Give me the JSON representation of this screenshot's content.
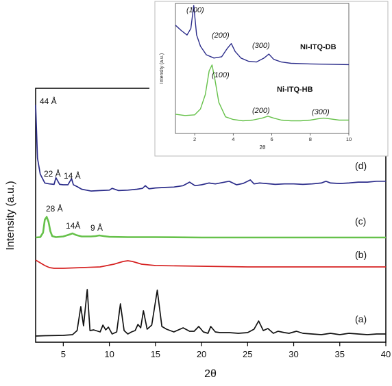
{
  "chart_data": [
    {
      "type": "line",
      "title": "",
      "xlabel": "2θ",
      "ylabel": "Intensity (a.u.)",
      "xlim": [
        2,
        40
      ],
      "x_ticks": [
        5,
        10,
        15,
        20,
        25,
        30,
        35,
        40
      ],
      "y_ticks_shown": false,
      "series": [
        {
          "name": "(d)",
          "color": "#2b2c8a",
          "x": [
            2.0,
            2.2,
            2.5,
            3.0,
            3.5,
            4.0,
            4.2,
            4.6,
            5.0,
            5.5,
            5.9,
            6.1,
            6.5,
            7.0,
            8.0,
            9.0,
            10.0,
            10.3,
            11.0,
            12.0,
            13.0,
            13.6,
            13.9,
            14.3,
            15.0,
            16.0,
            17.0,
            18.0,
            18.7,
            19.3,
            20.0,
            20.8,
            21.5,
            22.0,
            23.0,
            23.8,
            24.5,
            25.3,
            25.7,
            26.3,
            27.0,
            28.0,
            29.0,
            30.0,
            31.0,
            32.0,
            33.0,
            33.5,
            34.0,
            35.0,
            36.0,
            37.0,
            38.0,
            39.0,
            40.0
          ],
          "y": [
            100,
            40,
            22,
            12,
            11,
            10.5,
            18,
            10.5,
            10,
            10,
            17,
            10,
            8,
            5,
            3,
            3.5,
            4,
            6,
            3.5,
            4,
            5,
            6,
            9,
            5.5,
            6.5,
            7,
            7.5,
            9,
            13,
            9,
            10,
            12,
            11,
            12,
            14,
            10,
            11.5,
            15.5,
            11,
            12,
            11.5,
            10.5,
            11,
            11,
            10.5,
            11,
            12,
            14,
            12,
            11.5,
            12,
            13,
            13,
            14,
            14
          ]
        },
        {
          "name": "(c)",
          "color": "#66c14a",
          "x": [
            2.0,
            2.5,
            2.8,
            3.0,
            3.2,
            3.4,
            3.6,
            3.8,
            4.2,
            5.0,
            5.6,
            6.0,
            6.4,
            7.0,
            8.0,
            8.5,
            8.9,
            9.4,
            10.0,
            12.0,
            15.0,
            20.0,
            25.0,
            30.0,
            35.0,
            40.0
          ],
          "y": [
            1,
            1.5,
            8,
            27,
            31,
            24,
            10,
            3,
            1.5,
            2.5,
            5,
            7,
            4.5,
            2.5,
            2.5,
            3,
            4,
            3,
            2,
            1.5,
            1.5,
            1,
            1,
            1,
            1,
            1
          ]
        },
        {
          "name": "(b)",
          "color": "#d62222",
          "x": [
            2.0,
            2.5,
            3.0,
            3.5,
            4.0,
            5.0,
            7.0,
            9.0,
            10.5,
            11.5,
            12.0,
            12.5,
            13.5,
            15.0,
            20.0,
            25.0,
            30.0,
            35.0,
            40.0
          ],
          "y": [
            6,
            4,
            2,
            0.5,
            0,
            0,
            0.5,
            1,
            3,
            5,
            5.5,
            5,
            3,
            2,
            1.5,
            1,
            1,
            1,
            1
          ]
        },
        {
          "name": "(a)",
          "color": "#111111",
          "x": [
            2.0,
            3.0,
            5.0,
            6.0,
            6.5,
            6.9,
            7.2,
            7.6,
            7.9,
            8.3,
            9.0,
            9.3,
            9.6,
            9.9,
            10.3,
            10.8,
            11.2,
            11.6,
            12.0,
            12.4,
            12.8,
            13.1,
            13.4,
            13.7,
            14.1,
            14.6,
            15.2,
            15.7,
            16.2,
            17.0,
            18.0,
            18.7,
            19.2,
            19.7,
            20.2,
            20.7,
            21.0,
            21.5,
            22.0,
            23.0,
            24.0,
            25.0,
            25.7,
            26.2,
            26.7,
            27.2,
            27.8,
            28.3,
            29.0,
            29.5,
            30.3,
            31.0,
            32.0,
            33.0,
            34.0,
            35.0,
            36.0,
            37.0,
            38.0,
            39.0,
            40.0
          ],
          "y": [
            0,
            0.5,
            1,
            2,
            8,
            43,
            15,
            68,
            8,
            9,
            6,
            16,
            9,
            13,
            3,
            6,
            47,
            8,
            3,
            6,
            8,
            17,
            12,
            37,
            10,
            16,
            67,
            14,
            10,
            6,
            12,
            7,
            7,
            14,
            6,
            4,
            14,
            6,
            5,
            5,
            4,
            5,
            10,
            22,
            8,
            11,
            4,
            7,
            5,
            4,
            7,
            4,
            3,
            2,
            4,
            2,
            4,
            3,
            2,
            3,
            3
          ]
        }
      ],
      "curve_labels": [
        "(d)",
        "(c)",
        "(b)",
        "(a)"
      ],
      "annotations": [
        "44 Å",
        "22 Å",
        "14 Å",
        "28 Å",
        "14Å",
        "9 Å"
      ]
    },
    {
      "type": "line",
      "title": "",
      "xlabel": "2θ",
      "ylabel": "Intensity (a.u.)",
      "xlim": [
        1,
        10
      ],
      "x_ticks": [
        2,
        4,
        6,
        8,
        10
      ],
      "series": [
        {
          "name": "Ni-ITQ-DB",
          "color": "#2b2c8a",
          "x": [
            1.0,
            1.3,
            1.6,
            1.8,
            1.95,
            2.1,
            2.3,
            2.6,
            3.0,
            3.4,
            3.7,
            3.9,
            4.1,
            4.4,
            4.8,
            5.2,
            5.6,
            5.85,
            6.1,
            6.5,
            7.0,
            8.0,
            9.0,
            10.0
          ],
          "y": [
            70,
            62,
            55,
            65,
            100,
            55,
            38,
            25,
            20,
            22,
            35,
            42,
            30,
            20,
            15,
            14,
            20,
            26,
            18,
            14,
            12,
            11,
            10.5,
            10
          ]
        },
        {
          "name": "Ni-ITQ-HB",
          "color": "#66c14a",
          "x": [
            1.0,
            1.5,
            2.0,
            2.3,
            2.55,
            2.75,
            2.9,
            3.05,
            3.25,
            3.6,
            4.0,
            4.5,
            5.0,
            5.5,
            5.8,
            6.1,
            6.5,
            7.0,
            7.5,
            8.0,
            8.4,
            8.7,
            9.0,
            9.5,
            10.0
          ],
          "y": [
            22,
            20,
            21,
            30,
            52,
            88,
            97,
            75,
            40,
            18,
            14,
            12,
            13,
            16,
            19,
            16,
            13,
            12,
            12,
            13,
            15,
            16,
            15,
            13,
            13
          ]
        }
      ],
      "annotations": [
        "(100)",
        "(200)",
        "(300)",
        "(100)",
        "(200)",
        "(300)"
      ]
    }
  ]
}
